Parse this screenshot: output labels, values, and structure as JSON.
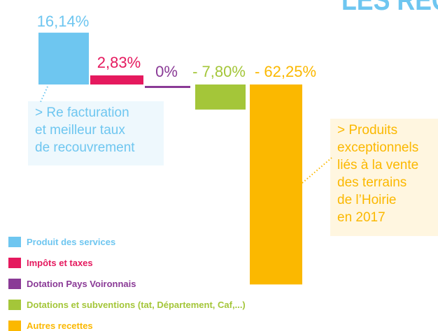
{
  "chart_data": {
    "type": "bar",
    "title": "LES RECETTES",
    "categories": [
      "Produit des services",
      "Impôts et taxes",
      "Dotation Pays Voironnais",
      "Dotations et subventions (tat, Département, Caf,...)",
      "Autres recettes"
    ],
    "values": [
      16.14,
      2.83,
      0,
      -7.8,
      -62.25
    ],
    "value_labels": [
      "16,14%",
      "2,83%",
      "0%",
      "- 7,80%",
      "- 62,25%"
    ],
    "colors": [
      "#6ec6f0",
      "#e5195e",
      "#8a3a96",
      "#a4c639",
      "#fbb800"
    ],
    "annotations": [
      {
        "lines": [
          "> Re facturation",
          "et meilleur taux",
          "de recouvrement"
        ]
      },
      {
        "lines": [
          "> Produits",
          "exceptionnels",
          "liés à la vente",
          "des terrains",
          "de l’Hoirie",
          "en 2017"
        ]
      }
    ]
  }
}
